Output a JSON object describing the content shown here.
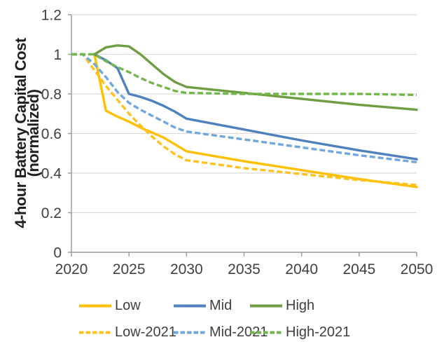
{
  "figure": {
    "y_axis_title_line1": "4-hour Battery Capital Cost",
    "y_axis_title_line2": "(normalized)"
  },
  "chart_data": {
    "type": "line",
    "title": "",
    "xlabel": "",
    "ylabel": "4-hour Battery Capital Cost (normalized)",
    "xlim": [
      2020,
      2050
    ],
    "ylim": [
      0,
      1.2
    ],
    "grid": true,
    "legend_position": "bottom",
    "x_ticks": [
      2020,
      2025,
      2030,
      2035,
      2040,
      2045,
      2050
    ],
    "x_tick_labels": [
      "2020",
      "2025",
      "2030",
      "2035",
      "2040",
      "2045",
      "2050"
    ],
    "y_ticks": [
      0,
      0.2,
      0.4,
      0.6,
      0.8,
      1,
      1.2
    ],
    "y_tick_labels": [
      "0",
      "0.2",
      "0.4",
      "0.6",
      "0.8",
      "1",
      "1.2"
    ],
    "x": [
      2020,
      2021,
      2022,
      2023,
      2024,
      2025,
      2026,
      2027,
      2028,
      2029,
      2030,
      2035,
      2040,
      2045,
      2050
    ],
    "series": [
      {
        "name": "Low",
        "color": "#FFC000",
        "style": "solid",
        "values": [
          null,
          null,
          1.0,
          0.715,
          0.685,
          0.66,
          0.63,
          0.605,
          0.58,
          0.545,
          0.51,
          0.46,
          0.415,
          0.37,
          0.33
        ]
      },
      {
        "name": "Mid",
        "color": "#4E81BD",
        "style": "solid",
        "values": [
          null,
          null,
          1.0,
          0.97,
          0.93,
          0.8,
          0.785,
          0.765,
          0.74,
          0.71,
          0.675,
          0.62,
          0.565,
          0.515,
          0.47
        ]
      },
      {
        "name": "High",
        "color": "#6E9E41",
        "style": "solid",
        "values": [
          null,
          null,
          1.0,
          1.035,
          1.045,
          1.04,
          1.0,
          0.95,
          0.9,
          0.86,
          0.835,
          0.805,
          0.775,
          0.745,
          0.72
        ]
      },
      {
        "name": "Low-2021",
        "color": "#FFC21F",
        "style": "dashed",
        "values": [
          1.0,
          1.0,
          0.92,
          0.84,
          0.77,
          0.7,
          0.64,
          0.585,
          0.535,
          0.495,
          0.465,
          0.425,
          0.395,
          0.365,
          0.34
        ]
      },
      {
        "name": "Mid-2021",
        "color": "#70A8DC",
        "style": "dashed",
        "values": [
          1.0,
          1.0,
          0.95,
          0.885,
          0.81,
          0.755,
          0.72,
          0.69,
          0.66,
          0.63,
          0.61,
          0.57,
          0.53,
          0.49,
          0.455
        ]
      },
      {
        "name": "High-2021",
        "color": "#72B74B",
        "style": "dashed",
        "values": [
          1.0,
          1.0,
          1.0,
          0.965,
          0.935,
          0.91,
          0.88,
          0.855,
          0.835,
          0.815,
          0.805,
          0.8,
          0.8,
          0.8,
          0.795
        ]
      }
    ],
    "style_colors": {
      "gridline": "#DBDBDB",
      "axis": "#9C9C9C",
      "tick_text": "#404040"
    }
  }
}
